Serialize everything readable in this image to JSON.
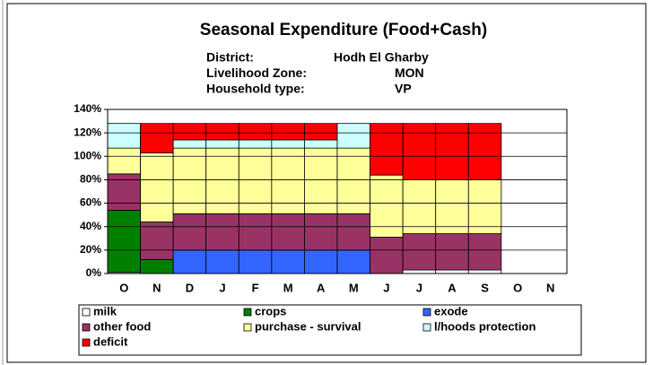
{
  "chart_data": {
    "type": "stacked_bar",
    "title": "Seasonal Expenditure (Food+Cash)",
    "info": [
      {
        "label": "District:",
        "value": "Hodh El Gharby"
      },
      {
        "label": "Livelihood Zone:",
        "value": "MON"
      },
      {
        "label": "Household type:",
        "value": "VP"
      }
    ],
    "categories": [
      "O",
      "N",
      "D",
      "J",
      "F",
      "M",
      "A",
      "M",
      "J",
      "J",
      "A",
      "S",
      "O",
      "N"
    ],
    "series": [
      {
        "name": "milk",
        "color": "#ffffff",
        "values": [
          1,
          0,
          0,
          0,
          0,
          0,
          0,
          0,
          0,
          3,
          3,
          3,
          0,
          0
        ]
      },
      {
        "name": "crops",
        "color": "#008000",
        "values": [
          53,
          12,
          0,
          0,
          0,
          0,
          0,
          0,
          0,
          0,
          0,
          0,
          0,
          0
        ]
      },
      {
        "name": "exode",
        "color": "#3366ff",
        "values": [
          0,
          0,
          20,
          20,
          20,
          20,
          20,
          20,
          0,
          0,
          0,
          0,
          0,
          0
        ]
      },
      {
        "name": "other food",
        "color": "#993366",
        "values": [
          31,
          32,
          31,
          31,
          31,
          31,
          31,
          31,
          31,
          31,
          31,
          31,
          0,
          0
        ]
      },
      {
        "name": "purchase - survival",
        "color": "#ffff99",
        "values": [
          22,
          59,
          56,
          56,
          56,
          56,
          56,
          56,
          53,
          46,
          46,
          46,
          0,
          0
        ]
      },
      {
        "name": "l/hoods protection",
        "color": "#ccffff",
        "values": [
          21,
          0,
          7,
          7,
          7,
          7,
          7,
          21,
          0,
          0,
          0,
          0,
          0,
          0
        ]
      },
      {
        "name": "deficit",
        "color": "#ff0000",
        "values": [
          0,
          25,
          14,
          14,
          14,
          14,
          14,
          0,
          44,
          48,
          48,
          48,
          0,
          0
        ]
      }
    ],
    "ylim": [
      0,
      140
    ],
    "yticks": [
      {
        "value": 0,
        "label": "0%"
      },
      {
        "value": 20,
        "label": "20%"
      },
      {
        "value": 40,
        "label": "40%"
      },
      {
        "value": 60,
        "label": "60%"
      },
      {
        "value": 80,
        "label": "80%"
      },
      {
        "value": 100,
        "label": "100%"
      },
      {
        "value": 120,
        "label": "120%"
      },
      {
        "value": 140,
        "label": "140%"
      }
    ],
    "grid": true
  }
}
